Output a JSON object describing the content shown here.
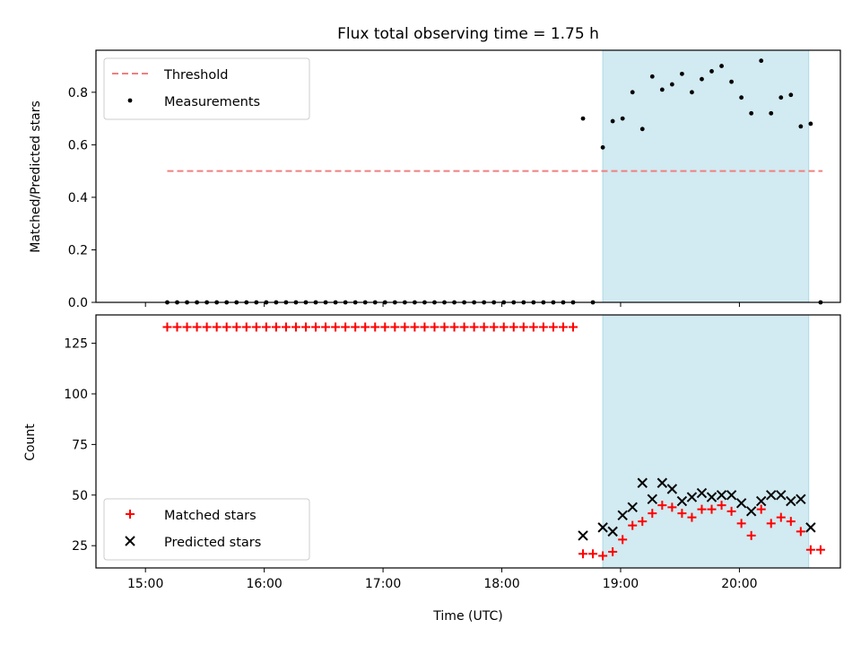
{
  "chart_data": {
    "title": "Flux total observing time = 1.75 h",
    "xlabel": "Time (UTC)",
    "x_ticks": [
      "15:00",
      "16:00",
      "17:00",
      "18:00",
      "19:00",
      "20:00"
    ],
    "observing_window": [
      "18:51",
      "20:35"
    ],
    "colors": {
      "threshold": "#f08080",
      "measurements": "#000000",
      "matched": "#ff0000",
      "predicted": "#000000",
      "window": "#add8e6"
    },
    "panels": [
      {
        "type": "scatter",
        "ylabel": "Matched/Predicted stars",
        "ylim": [
          0,
          0.96
        ],
        "yticks": [
          "0.0",
          "0.2",
          "0.4",
          "0.6",
          "0.8"
        ],
        "legend": "top-left",
        "threshold": {
          "name": "Threshold",
          "value": 0.5,
          "x_range": [
            "15:11",
            "20:42"
          ]
        },
        "series": [
          {
            "name": "Measurements",
            "marker": "dot",
            "points": [
              [
                "15:11",
                0
              ],
              [
                "15:16",
                0
              ],
              [
                "15:21",
                0
              ],
              [
                "15:26",
                0
              ],
              [
                "15:31",
                0
              ],
              [
                "15:36",
                0
              ],
              [
                "15:41",
                0
              ],
              [
                "15:46",
                0
              ],
              [
                "15:51",
                0
              ],
              [
                "15:56",
                0
              ],
              [
                "16:01",
                0
              ],
              [
                "16:06",
                0
              ],
              [
                "16:11",
                0
              ],
              [
                "16:16",
                0
              ],
              [
                "16:21",
                0
              ],
              [
                "16:26",
                0
              ],
              [
                "16:31",
                0
              ],
              [
                "16:36",
                0
              ],
              [
                "16:41",
                0
              ],
              [
                "16:46",
                0
              ],
              [
                "16:51",
                0
              ],
              [
                "16:56",
                0
              ],
              [
                "17:01",
                0
              ],
              [
                "17:06",
                0
              ],
              [
                "17:11",
                0
              ],
              [
                "17:16",
                0
              ],
              [
                "17:21",
                0
              ],
              [
                "17:26",
                0
              ],
              [
                "17:31",
                0
              ],
              [
                "17:36",
                0
              ],
              [
                "17:41",
                0
              ],
              [
                "17:46",
                0
              ],
              [
                "17:51",
                0
              ],
              [
                "17:56",
                0
              ],
              [
                "18:01",
                0
              ],
              [
                "18:06",
                0
              ],
              [
                "18:11",
                0
              ],
              [
                "18:16",
                0
              ],
              [
                "18:21",
                0
              ],
              [
                "18:26",
                0
              ],
              [
                "18:31",
                0
              ],
              [
                "18:36",
                0
              ],
              [
                "18:41",
                0.7
              ],
              [
                "18:46",
                0
              ],
              [
                "18:51",
                0.59
              ],
              [
                "18:56",
                0.69
              ],
              [
                "19:01",
                0.7
              ],
              [
                "19:06",
                0.8
              ],
              [
                "19:11",
                0.66
              ],
              [
                "19:16",
                0.86
              ],
              [
                "19:21",
                0.81
              ],
              [
                "19:26",
                0.83
              ],
              [
                "19:31",
                0.87
              ],
              [
                "19:36",
                0.8
              ],
              [
                "19:41",
                0.85
              ],
              [
                "19:46",
                0.88
              ],
              [
                "19:51",
                0.9
              ],
              [
                "19:56",
                0.84
              ],
              [
                "20:01",
                0.78
              ],
              [
                "20:06",
                0.72
              ],
              [
                "20:11",
                0.92
              ],
              [
                "20:16",
                0.72
              ],
              [
                "20:21",
                0.78
              ],
              [
                "20:26",
                0.79
              ],
              [
                "20:31",
                0.67
              ],
              [
                "20:36",
                0.68
              ],
              [
                "20:41",
                0
              ]
            ]
          }
        ]
      },
      {
        "type": "scatter",
        "ylabel": "Count",
        "ylim": [
          14,
          139
        ],
        "yticks": [
          "25",
          "50",
          "75",
          "100",
          "125"
        ],
        "legend": "bottom-left",
        "series": [
          {
            "name": "Matched stars",
            "marker": "plus",
            "points": [
              [
                "15:11",
                133
              ],
              [
                "15:16",
                133
              ],
              [
                "15:21",
                133
              ],
              [
                "15:26",
                133
              ],
              [
                "15:31",
                133
              ],
              [
                "15:36",
                133
              ],
              [
                "15:41",
                133
              ],
              [
                "15:46",
                133
              ],
              [
                "15:51",
                133
              ],
              [
                "15:56",
                133
              ],
              [
                "16:01",
                133
              ],
              [
                "16:06",
                133
              ],
              [
                "16:11",
                133
              ],
              [
                "16:16",
                133
              ],
              [
                "16:21",
                133
              ],
              [
                "16:26",
                133
              ],
              [
                "16:31",
                133
              ],
              [
                "16:36",
                133
              ],
              [
                "16:41",
                133
              ],
              [
                "16:46",
                133
              ],
              [
                "16:51",
                133
              ],
              [
                "16:56",
                133
              ],
              [
                "17:01",
                133
              ],
              [
                "17:06",
                133
              ],
              [
                "17:11",
                133
              ],
              [
                "17:16",
                133
              ],
              [
                "17:21",
                133
              ],
              [
                "17:26",
                133
              ],
              [
                "17:31",
                133
              ],
              [
                "17:36",
                133
              ],
              [
                "17:41",
                133
              ],
              [
                "17:46",
                133
              ],
              [
                "17:51",
                133
              ],
              [
                "17:56",
                133
              ],
              [
                "18:01",
                133
              ],
              [
                "18:06",
                133
              ],
              [
                "18:11",
                133
              ],
              [
                "18:16",
                133
              ],
              [
                "18:21",
                133
              ],
              [
                "18:26",
                133
              ],
              [
                "18:31",
                133
              ],
              [
                "18:36",
                133
              ],
              [
                "18:41",
                21
              ],
              [
                "18:46",
                21
              ],
              [
                "18:51",
                20
              ],
              [
                "18:56",
                22
              ],
              [
                "19:01",
                28
              ],
              [
                "19:06",
                35
              ],
              [
                "19:11",
                37
              ],
              [
                "19:16",
                41
              ],
              [
                "19:21",
                45
              ],
              [
                "19:26",
                44
              ],
              [
                "19:31",
                41
              ],
              [
                "19:36",
                39
              ],
              [
                "19:41",
                43
              ],
              [
                "19:46",
                43
              ],
              [
                "19:51",
                45
              ],
              [
                "19:56",
                42
              ],
              [
                "20:01",
                36
              ],
              [
                "20:06",
                30
              ],
              [
                "20:11",
                43
              ],
              [
                "20:16",
                36
              ],
              [
                "20:21",
                39
              ],
              [
                "20:26",
                37
              ],
              [
                "20:31",
                32
              ],
              [
                "20:36",
                23
              ],
              [
                "20:41",
                23
              ]
            ]
          },
          {
            "name": "Predicted stars",
            "marker": "x",
            "points": [
              [
                "18:41",
                30
              ],
              [
                "18:51",
                34
              ],
              [
                "18:56",
                32
              ],
              [
                "19:01",
                40
              ],
              [
                "19:06",
                44
              ],
              [
                "19:11",
                56
              ],
              [
                "19:16",
                48
              ],
              [
                "19:21",
                56
              ],
              [
                "19:26",
                53
              ],
              [
                "19:31",
                47
              ],
              [
                "19:36",
                49
              ],
              [
                "19:41",
                51
              ],
              [
                "19:46",
                49
              ],
              [
                "19:51",
                50
              ],
              [
                "19:56",
                50
              ],
              [
                "20:01",
                46
              ],
              [
                "20:06",
                42
              ],
              [
                "20:11",
                47
              ],
              [
                "20:16",
                50
              ],
              [
                "20:21",
                50
              ],
              [
                "20:26",
                47
              ],
              [
                "20:31",
                48
              ],
              [
                "20:36",
                34
              ]
            ]
          }
        ]
      }
    ]
  }
}
